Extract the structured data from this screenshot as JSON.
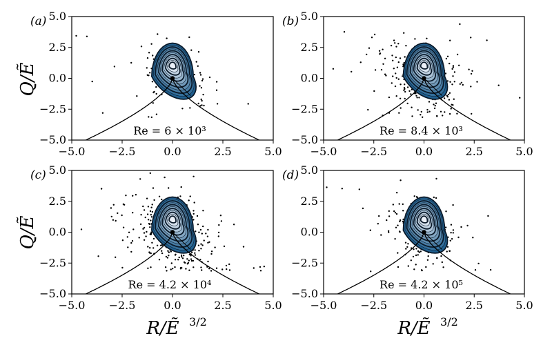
{
  "chart_data": {
    "type": "scatter",
    "shared": {
      "xlim": [
        -5.0,
        5.0
      ],
      "ylim": [
        -5.0,
        5.0
      ],
      "xticks": [
        -5.0,
        -2.5,
        0.0,
        2.5,
        5.0
      ],
      "yticks": [
        -5.0,
        -2.5,
        0.0,
        2.5,
        5.0
      ],
      "xtick_labels": [
        "−5.0",
        "−2.5",
        "0.0",
        "2.5",
        "5.0"
      ],
      "ytick_labels": [
        "−5.0",
        "−2.5",
        "0.0",
        "2.5",
        "5.0"
      ],
      "xlabel": "R/Ẽ^{3/2}",
      "ylabel": "Q/Ẽ",
      "curve": "discriminant lines Q = −(27/4)^{1/3} R^{2/3}",
      "grid": false,
      "contour_colormap": "blue-to-white (Blues)"
    },
    "panels": [
      {
        "label": "(a)",
        "re_text": "Re = 6 × 10³"
      },
      {
        "label": "(b)",
        "re_text": "Re = 8.4 × 10³"
      },
      {
        "label": "(c)",
        "re_text": "Re = 4.2 × 10⁴"
      },
      {
        "label": "(d)",
        "re_text": "Re = 4.2 × 10⁵"
      }
    ]
  },
  "axis_text": {
    "xlabel_left": "R/Ẽ",
    "xlabel_right": "R/Ẽ",
    "xlabel_exp": "3/2",
    "ylabel_top": "Q/Ẽ",
    "ylabel_bottom": "Q/Ẽ"
  },
  "colors": {
    "contour_outer": "#1f5f8f",
    "contour_mid": "#5b9bc9",
    "contour_inner": "#e8eef7",
    "points": "#000000",
    "curve": "#000000"
  }
}
